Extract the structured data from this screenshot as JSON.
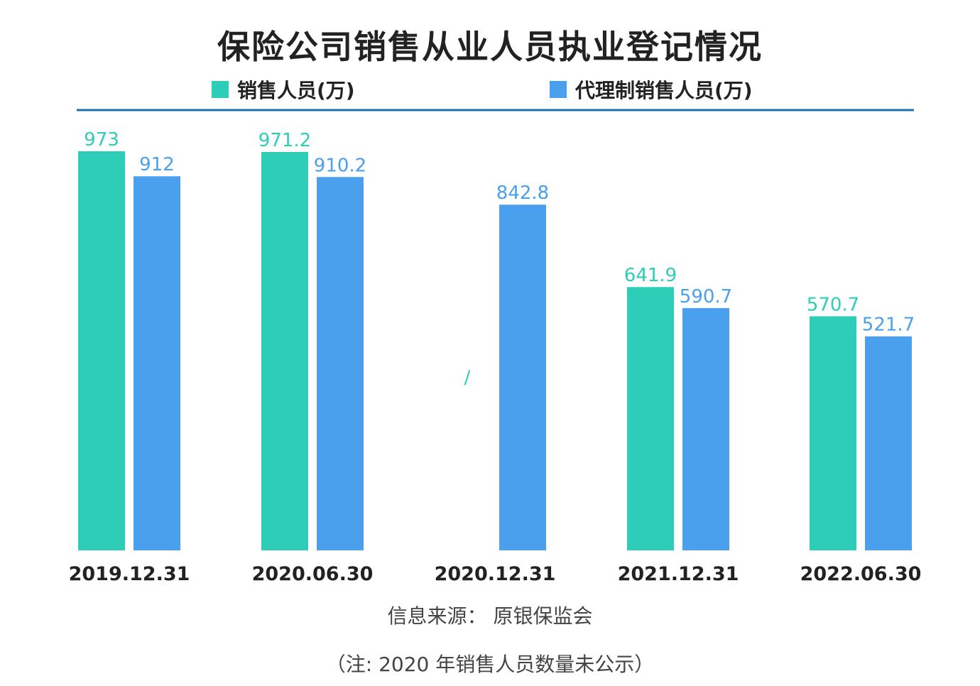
{
  "chart_data": {
    "type": "bar",
    "title": "保险公司销售从业人员执业登记情况",
    "categories": [
      "2019.12.31",
      "2020.06.30",
      "2020.12.31",
      "2021.12.31",
      "2022.06.30"
    ],
    "series": [
      {
        "name": "销售人员(万)",
        "color": "#2ecdb8",
        "values": [
          973,
          971.2,
          null,
          641.9,
          570.7
        ],
        "labels": [
          "973",
          "971.2",
          "/",
          "641.9",
          "570.7"
        ]
      },
      {
        "name": "代理制销售人员(万)",
        "color": "#4aa0ec",
        "values": [
          912,
          910.2,
          842.8,
          590.7,
          521.7
        ],
        "labels": [
          "912",
          "910.2",
          "842.8",
          "590.7",
          "521.7"
        ]
      }
    ],
    "ylim": [
      0,
      1000
    ],
    "grid": false,
    "legend_position": "top",
    "accent_line_color": "#1f6fb0"
  },
  "source": "信息来源：  原银保监会",
  "note": "（注: 2020 年销售人员数量未公示）"
}
